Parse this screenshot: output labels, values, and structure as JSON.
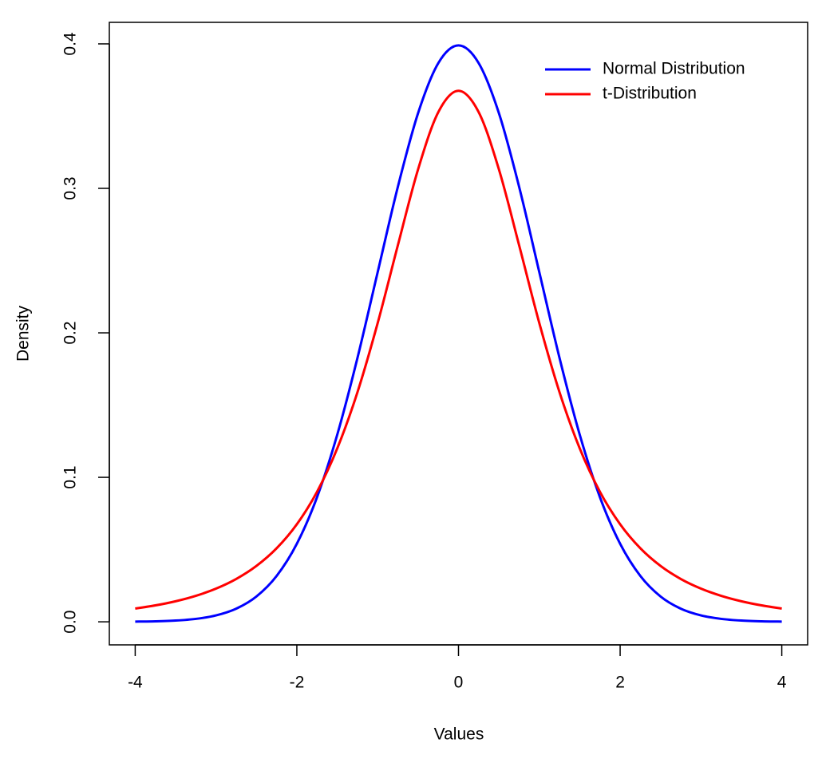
{
  "chart_data": {
    "type": "line",
    "x_label": "Values",
    "y_label": "Density",
    "x": [
      -4,
      -3.75,
      -3.5,
      -3.25,
      -3,
      -2.75,
      -2.5,
      -2.25,
      -2,
      -1.75,
      -1.5,
      -1.25,
      -1,
      -0.75,
      -0.5,
      -0.25,
      0,
      0.25,
      0.5,
      0.75,
      1,
      1.25,
      1.5,
      1.75,
      2,
      2.25,
      2.5,
      2.75,
      3,
      3.25,
      3.5,
      3.75,
      4
    ],
    "series": [
      {
        "name": "Normal Distribution",
        "color": "#0000ff",
        "values": [
          0.000134,
          0.000353,
          0.000873,
          0.002029,
          0.004432,
          0.009094,
          0.017528,
          0.03174,
          0.053991,
          0.086277,
          0.129518,
          0.182649,
          0.241971,
          0.301137,
          0.352065,
          0.386668,
          0.398942,
          0.386668,
          0.352065,
          0.301137,
          0.241971,
          0.182649,
          0.129518,
          0.086277,
          0.053991,
          0.03174,
          0.017528,
          0.009094,
          0.004432,
          0.002029,
          0.000873,
          0.000353,
          0.000134
        ]
      },
      {
        "name": "t-Distribution",
        "color": "#ff0000",
        "values": [
          0.009163,
          0.011363,
          0.014224,
          0.017984,
          0.022972,
          0.029651,
          0.038662,
          0.050889,
          0.06751,
          0.090003,
          0.120017,
          0.158913,
          0.206749,
          0.260647,
          0.313183,
          0.352705,
          0.367553,
          0.352705,
          0.313183,
          0.260647,
          0.206749,
          0.158913,
          0.120017,
          0.090003,
          0.06751,
          0.050889,
          0.038662,
          0.029651,
          0.022972,
          0.017984,
          0.014224,
          0.011363,
          0.009163
        ]
      }
    ],
    "xlim": [
      -4.32,
      4.32
    ],
    "ylim": [
      -0.01596,
      0.4149
    ],
    "xticks": [
      -4,
      -2,
      0,
      2,
      4
    ],
    "yticks": [
      {
        "value": 0,
        "label": "0.0"
      },
      0.1,
      0.2,
      0.3,
      0.4
    ],
    "legend": "topright",
    "grid": false
  }
}
